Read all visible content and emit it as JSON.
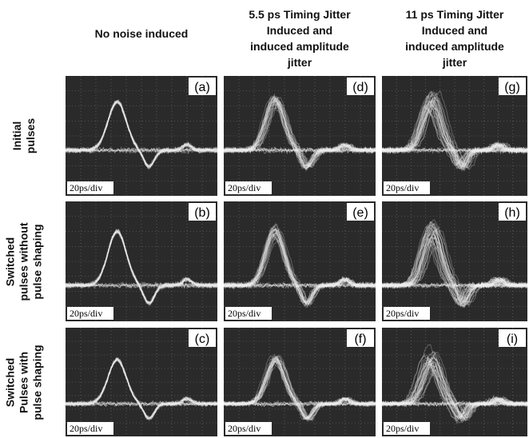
{
  "columns": [
    {
      "lines": [
        "No noise induced"
      ]
    },
    {
      "lines": [
        "5.5 ps Timing Jitter",
        "Induced and",
        "induced amplitude",
        "jitter"
      ]
    },
    {
      "lines": [
        "11 ps Timing Jitter",
        "Induced and",
        "induced amplitude",
        "jitter"
      ]
    }
  ],
  "rows": [
    {
      "lines": [
        "Initial",
        "pulses"
      ]
    },
    {
      "lines": [
        "Switched",
        "pulses without",
        "pulse shaping"
      ]
    },
    {
      "lines": [
        "Switched",
        "Pulses with",
        "pulse shaping"
      ]
    }
  ],
  "panels": [
    {
      "label": "(a)",
      "scale": "20ps/div"
    },
    {
      "label": "(d)",
      "scale": "20ps/div"
    },
    {
      "label": "(g)",
      "scale": "20ps/div"
    },
    {
      "label": "(b)",
      "scale": "20ps/div"
    },
    {
      "label": "(e)",
      "scale": "20ps/div"
    },
    {
      "label": "(h)",
      "scale": "20ps/div"
    },
    {
      "label": "(c)",
      "scale": "20ps/div"
    },
    {
      "label": "(f)",
      "scale": "20ps/div"
    },
    {
      "label": "(i)",
      "scale": "20ps/div"
    }
  ]
}
